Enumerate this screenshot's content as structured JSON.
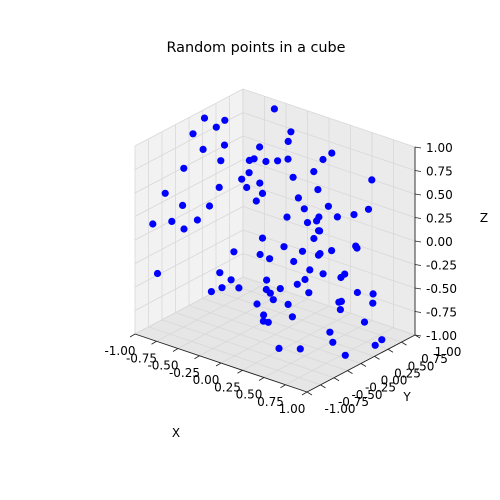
{
  "chart_data": {
    "type": "scatter",
    "projection": "3d",
    "title": "Random points in a cube",
    "xlabel": "X",
    "ylabel": "Y",
    "zlabel": "Z",
    "xlim": [
      -1.0,
      1.0
    ],
    "ylim": [
      -1.0,
      1.0
    ],
    "zlim": [
      -1.0,
      1.0
    ],
    "x_ticks": [
      "-1.00",
      "-0.75",
      "-0.50",
      "-0.25",
      "0.00",
      "0.25",
      "0.50",
      "0.75",
      "1.00"
    ],
    "y_ticks": [
      "-1.00",
      "-0.75",
      "-0.50",
      "-0.25",
      "0.00",
      "0.25",
      "0.50",
      "0.75",
      "1.00"
    ],
    "z_ticks": [
      "-1.00",
      "-0.75",
      "-0.50",
      "-0.25",
      "0.00",
      "0.25",
      "0.50",
      "0.75",
      "1.00"
    ],
    "tick_values": [
      -1.0,
      -0.75,
      -0.5,
      -0.25,
      0.0,
      0.25,
      0.5,
      0.75,
      1.0
    ],
    "grid": true,
    "marker_color": "#0000ff",
    "pane_colors": [
      "#f2f2f2",
      "#e6e6e6",
      "#ebebeb"
    ],
    "series": [
      {
        "x": [
          -0.82,
          0.41,
          -0.12,
          0.93,
          -0.55,
          0.06,
          0.71,
          -0.33,
          0.18,
          -0.97,
          0.52,
          -0.68,
          0.27,
          0.84,
          -0.21,
          -0.46,
          0.63,
          0.01,
          -0.9,
          0.36,
          0.77,
          -0.08,
          -0.61,
          0.14,
          0.95,
          -0.39,
          0.48,
          -0.75,
          0.22,
          0.59,
          -0.16,
          -0.87,
          0.33,
          0.69,
          -0.5,
          0.1,
          0.88,
          -0.28,
          -0.71,
          0.45,
          0.03,
          -0.94,
          0.57,
          -0.36,
          0.8,
          -0.13,
          0.25,
          -0.58,
          0.66,
          -0.04,
          -0.79,
          0.39,
          0.92,
          -0.24,
          -0.63,
          0.12,
          0.74,
          -0.43,
          0.5,
          -0.86,
          0.2,
          0.61,
          -0.31,
          -0.07,
          0.97,
          -0.52,
          0.35,
          -0.73,
          0.09,
          0.82,
          -0.18,
          -0.91,
          0.43,
          0.68,
          -0.47,
          0.15,
          0.54,
          -0.66,
          0.29,
          0.86,
          -0.11,
          -0.8,
          0.37,
          -0.26,
          0.72,
          -0.56,
          0.05,
          0.99,
          -0.35,
          0.47,
          -0.69,
          0.24,
          0.63,
          -0.15,
          -0.84,
          0.31,
          0.89,
          -0.42,
          -0.02,
          0.56
        ],
        "y": [
          0.37,
          -0.74,
          0.91,
          -0.18,
          0.53,
          -0.62,
          0.08,
          0.86,
          -0.41,
          0.24,
          0.69,
          -0.95,
          0.46,
          -0.29,
          0.12,
          0.78,
          -0.57,
          0.33,
          -0.83,
          0.61,
          -0.07,
          0.94,
          -0.36,
          0.19,
          -0.68,
          0.72,
          0.03,
          -0.49,
          0.87,
          -0.22,
          0.55,
          -0.79,
          0.28,
          -0.11,
          0.64,
          -0.92,
          0.41,
          0.16,
          -0.58,
          0.81,
          -0.33,
          0.06,
          0.75,
          -0.64,
          0.22,
          -0.97,
          0.49,
          0.11,
          -0.45,
          0.89,
          -0.26,
          0.67,
          -0.82,
          0.35,
          -0.03,
          0.58,
          -0.71,
          0.93,
          -0.17,
          0.44,
          -0.53,
          0.76,
          0.02,
          -0.87,
          0.31,
          0.66,
          -0.39,
          0.14,
          -0.76,
          0.51,
          0.83,
          -0.24,
          -0.61,
          0.38,
          0.97,
          -0.47,
          0.21,
          -0.86,
          0.59,
          -0.14,
          0.73,
          0.27,
          -0.69,
          0.08,
          -0.34,
          0.88,
          0.43,
          -0.56,
          0.17,
          -0.91,
          0.62,
          -0.06,
          0.79,
          -0.43,
          0.25,
          -0.77,
          0.56,
          0.91,
          -0.2,
          -0.65
        ],
        "z": [
          0.65,
          -0.21,
          0.42,
          -0.88,
          0.09,
          0.77,
          -0.54,
          0.31,
          -0.69,
          0.93,
          -0.13,
          0.58,
          -0.41,
          0.24,
          -0.96,
          0.47,
          0.82,
          -0.32,
          0.15,
          -0.73,
          0.51,
          -0.06,
          0.89,
          -0.48,
          0.36,
          -0.85,
          0.68,
          0.04,
          -0.59,
          0.27,
          0.94,
          -0.38,
          -0.14,
          0.61,
          -0.77,
          0.19,
          -0.52,
          0.86,
          0.33,
          -0.66,
          0.72,
          -0.09,
          -0.92,
          0.45,
          0.12,
          -0.29,
          0.79,
          -0.63,
          0.53,
          -0.18,
          0.97,
          -0.44,
          0.22,
          -0.81,
          0.38,
          0.07,
          -0.71,
          0.64,
          -0.35,
          0.88,
          -0.57,
          0.29,
          0.75,
          -0.26,
          -0.91,
          0.48,
          0.16,
          -0.61,
          0.91,
          -0.47,
          0.03,
          0.56,
          -0.83,
          0.37,
          -0.19,
          0.69,
          -0.98,
          0.26,
          0.84,
          -0.34,
          -0.67,
          0.52,
          0.13,
          -0.78,
          0.43,
          0.96,
          -0.23,
          -0.5,
          0.71,
          -0.1,
          0.32,
          -0.72,
          0.6,
          -0.42,
          0.87,
          0.18,
          -0.95,
          0.46,
          0.08,
          -0.31
        ]
      }
    ]
  }
}
